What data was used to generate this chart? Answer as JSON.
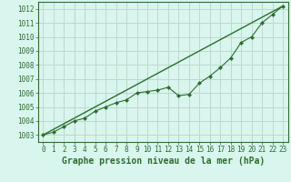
{
  "title": "Graphe pression niveau de la mer (hPa)",
  "background_color": "#d8f5ee",
  "grid_color": "#c0d8cc",
  "line_color": "#2d6e2d",
  "marker_color": "#2d6e2d",
  "x_values": [
    0,
    1,
    2,
    3,
    4,
    5,
    6,
    7,
    8,
    9,
    10,
    11,
    12,
    13,
    14,
    15,
    16,
    17,
    18,
    19,
    20,
    21,
    22,
    23
  ],
  "y_values": [
    1003.0,
    1003.2,
    1003.6,
    1004.0,
    1004.2,
    1004.7,
    1005.0,
    1005.3,
    1005.5,
    1006.0,
    1006.1,
    1006.2,
    1006.4,
    1005.8,
    1005.9,
    1006.7,
    1007.2,
    1007.8,
    1008.5,
    1009.6,
    1010.0,
    1011.0,
    1011.6,
    1012.2
  ],
  "trend_x": [
    0,
    23
  ],
  "trend_y": [
    1003.0,
    1012.2
  ],
  "ylim": [
    1002.5,
    1012.5
  ],
  "xlim": [
    -0.5,
    23.5
  ],
  "yticks": [
    1003,
    1004,
    1005,
    1006,
    1007,
    1008,
    1009,
    1010,
    1011,
    1012
  ],
  "xticks": [
    0,
    1,
    2,
    3,
    4,
    5,
    6,
    7,
    8,
    9,
    10,
    11,
    12,
    13,
    14,
    15,
    16,
    17,
    18,
    19,
    20,
    21,
    22,
    23
  ],
  "title_fontsize": 7,
  "tick_fontsize": 5.5
}
